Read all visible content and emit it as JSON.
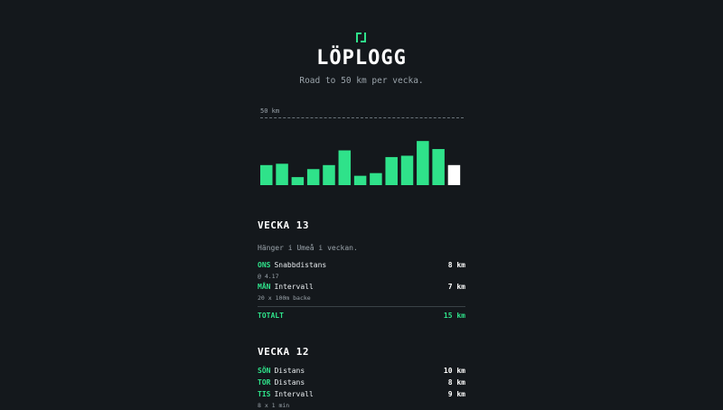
{
  "header": {
    "logo_icon": "bracket-logo-icon",
    "title": "LÖPLOGG",
    "subtitle": "Road to 50 km per vecka."
  },
  "chart_data": {
    "type": "bar",
    "goal_label": "50 km",
    "goal_value": 50,
    "ylim": [
      0,
      50
    ],
    "values": [
      15,
      16,
      6,
      12,
      15,
      26,
      7,
      9,
      21,
      22,
      33,
      27,
      15
    ],
    "colors": {
      "past": "#2fe28a",
      "current": "#ffffff"
    }
  },
  "weeks": [
    {
      "title": "VECKA 13",
      "note": "Hänger i Umeå i veckan.",
      "runs": [
        {
          "day": "ONS",
          "name": "Snabbdistans",
          "km": "8 km",
          "detail": "@ 4.17"
        },
        {
          "day": "MÅN",
          "name": "Intervall",
          "km": "7 km",
          "detail": "20 x 100m backe"
        }
      ],
      "total_label": "TOTALT",
      "total_km": "15 km"
    },
    {
      "title": "VECKA 12",
      "runs": [
        {
          "day": "SÖN",
          "name": "Distans",
          "km": "10 km"
        },
        {
          "day": "TOR",
          "name": "Distans",
          "km": "8 km"
        },
        {
          "day": "TIS",
          "name": "Intervall",
          "km": "9 km",
          "detail": "8 x 1 min"
        }
      ]
    }
  ],
  "colors": {
    "accent": "#2fe28a",
    "background": "#14181c"
  }
}
